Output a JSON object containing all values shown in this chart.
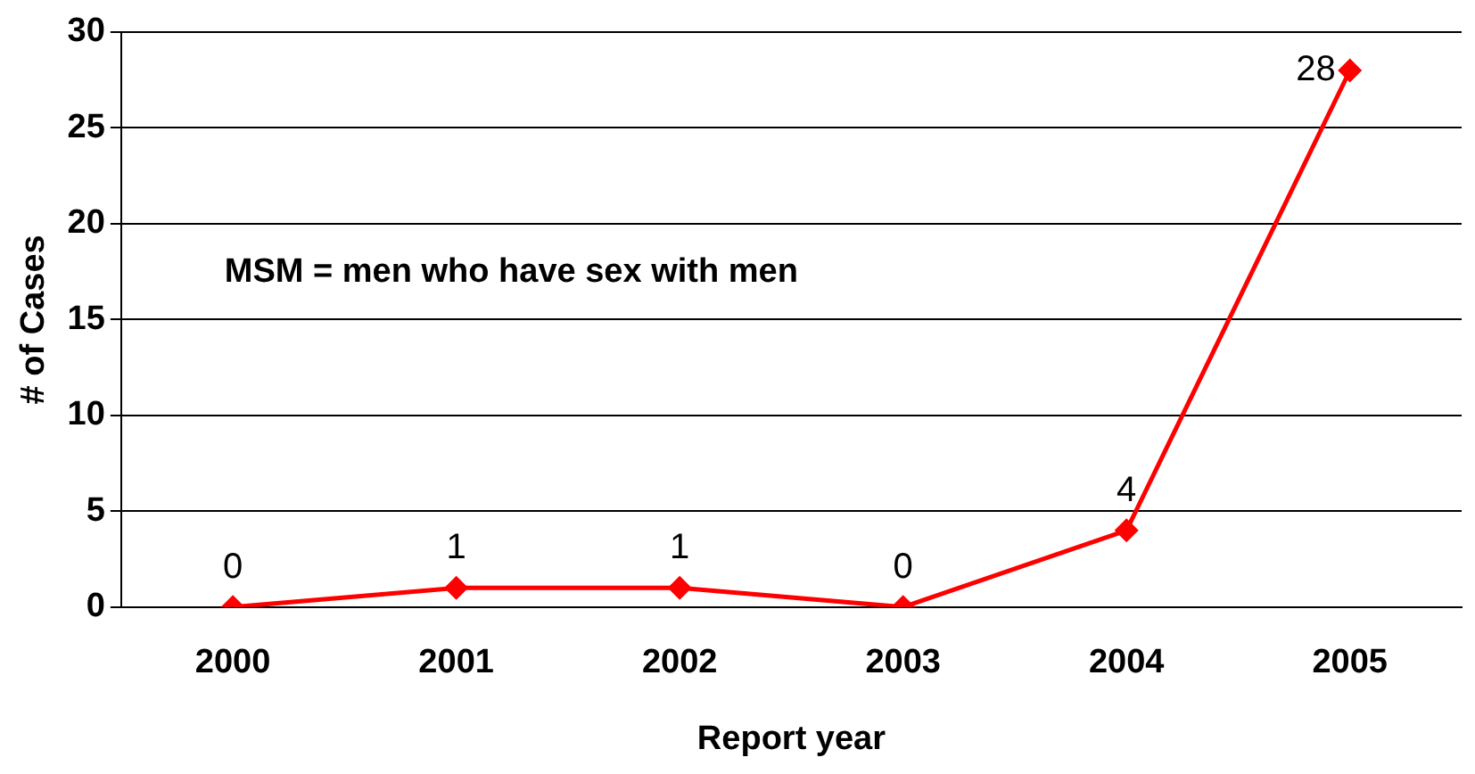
{
  "chart_data": {
    "type": "line",
    "xlabel": "Report year",
    "ylabel": "# of Cases",
    "categories": [
      "2000",
      "2001",
      "2002",
      "2003",
      "2004",
      "2005"
    ],
    "series": [
      {
        "color": "#ff0000",
        "values": [
          0,
          1,
          1,
          0,
          4,
          28
        ]
      }
    ],
    "ylim": [
      0,
      30
    ],
    "yticks": [
      0,
      5,
      10,
      15,
      20,
      25,
      30
    ],
    "grid": "y",
    "legend": false,
    "marker": "diamond",
    "line_style": "solid",
    "data_labels": true,
    "annotations": [
      "MSM = men who have sex with men"
    ]
  }
}
